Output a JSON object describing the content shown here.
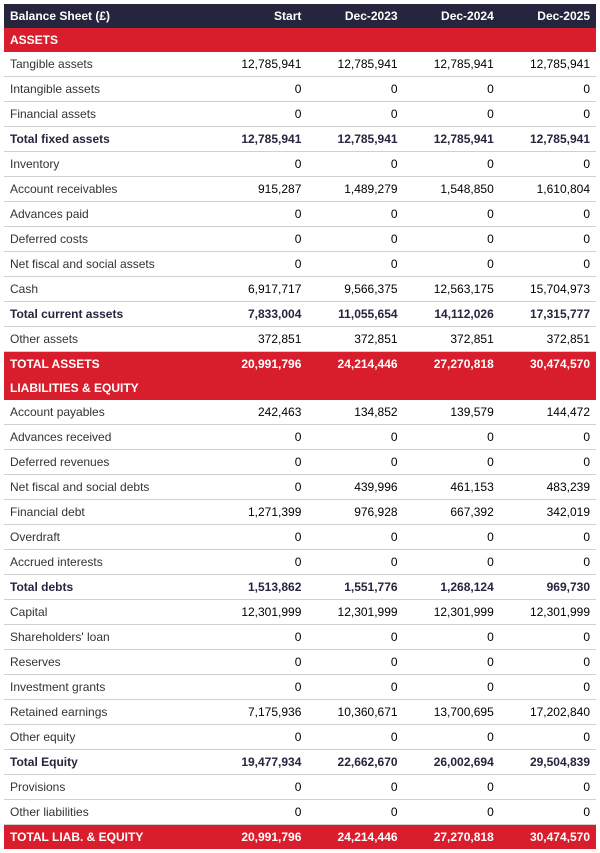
{
  "table": {
    "type": "table",
    "background_color": "#ffffff",
    "grid_color": "#d0d0d0",
    "font_size_pt": 12,
    "colors": {
      "header_bg": "#25253d",
      "header_fg": "#ffffff",
      "section_bg": "#d81e2c",
      "section_fg": "#ffffff",
      "subtotal_fg": "#25253d",
      "normal_fg": "#333333"
    },
    "columns": [
      "Balance Sheet (£)",
      "Start",
      "Dec-2023",
      "Dec-2024",
      "Dec-2025"
    ],
    "column_widths_pct": [
      35,
      16.25,
      16.25,
      16.25,
      16.25
    ],
    "rows": [
      {
        "kind": "section",
        "label": "ASSETS"
      },
      {
        "kind": "normal",
        "label": "Tangible assets",
        "values": [
          "12,785,941",
          "12,785,941",
          "12,785,941",
          "12,785,941"
        ]
      },
      {
        "kind": "normal",
        "label": "Intangible assets",
        "values": [
          "0",
          "0",
          "0",
          "0"
        ]
      },
      {
        "kind": "normal",
        "label": "Financial assets",
        "values": [
          "0",
          "0",
          "0",
          "0"
        ]
      },
      {
        "kind": "subtotal",
        "label": "Total fixed assets",
        "values": [
          "12,785,941",
          "12,785,941",
          "12,785,941",
          "12,785,941"
        ]
      },
      {
        "kind": "normal",
        "label": "Inventory",
        "values": [
          "0",
          "0",
          "0",
          "0"
        ]
      },
      {
        "kind": "normal",
        "label": "Account receivables",
        "values": [
          "915,287",
          "1,489,279",
          "1,548,850",
          "1,610,804"
        ]
      },
      {
        "kind": "normal",
        "label": "Advances paid",
        "values": [
          "0",
          "0",
          "0",
          "0"
        ]
      },
      {
        "kind": "normal",
        "label": "Deferred costs",
        "values": [
          "0",
          "0",
          "0",
          "0"
        ]
      },
      {
        "kind": "normal",
        "label": "Net fiscal and social assets",
        "values": [
          "0",
          "0",
          "0",
          "0"
        ]
      },
      {
        "kind": "normal",
        "label": "Cash",
        "values": [
          "6,917,717",
          "9,566,375",
          "12,563,175",
          "15,704,973"
        ]
      },
      {
        "kind": "subtotal",
        "label": "Total current assets",
        "values": [
          "7,833,004",
          "11,055,654",
          "14,112,026",
          "17,315,777"
        ]
      },
      {
        "kind": "normal",
        "label": "Other assets",
        "values": [
          "372,851",
          "372,851",
          "372,851",
          "372,851"
        ]
      },
      {
        "kind": "grand",
        "label": "TOTAL ASSETS",
        "values": [
          "20,991,796",
          "24,214,446",
          "27,270,818",
          "30,474,570"
        ]
      },
      {
        "kind": "section",
        "label": "LIABILITIES & EQUITY"
      },
      {
        "kind": "normal",
        "label": "Account payables",
        "values": [
          "242,463",
          "134,852",
          "139,579",
          "144,472"
        ]
      },
      {
        "kind": "normal",
        "label": "Advances received",
        "values": [
          "0",
          "0",
          "0",
          "0"
        ]
      },
      {
        "kind": "normal",
        "label": "Deferred revenues",
        "values": [
          "0",
          "0",
          "0",
          "0"
        ]
      },
      {
        "kind": "normal",
        "label": "Net fiscal and social debts",
        "values": [
          "0",
          "439,996",
          "461,153",
          "483,239"
        ]
      },
      {
        "kind": "normal",
        "label": "Financial debt",
        "values": [
          "1,271,399",
          "976,928",
          "667,392",
          "342,019"
        ]
      },
      {
        "kind": "normal",
        "label": "Overdraft",
        "values": [
          "0",
          "0",
          "0",
          "0"
        ]
      },
      {
        "kind": "normal",
        "label": "Accrued interests",
        "values": [
          "0",
          "0",
          "0",
          "0"
        ]
      },
      {
        "kind": "subtotal",
        "label": "Total debts",
        "values": [
          "1,513,862",
          "1,551,776",
          "1,268,124",
          "969,730"
        ]
      },
      {
        "kind": "normal",
        "label": "Capital",
        "values": [
          "12,301,999",
          "12,301,999",
          "12,301,999",
          "12,301,999"
        ]
      },
      {
        "kind": "normal",
        "label": "Shareholders' loan",
        "values": [
          "0",
          "0",
          "0",
          "0"
        ]
      },
      {
        "kind": "normal",
        "label": "Reserves",
        "values": [
          "0",
          "0",
          "0",
          "0"
        ]
      },
      {
        "kind": "normal",
        "label": "Investment grants",
        "values": [
          "0",
          "0",
          "0",
          "0"
        ]
      },
      {
        "kind": "normal",
        "label": "Retained earnings",
        "values": [
          "7,175,936",
          "10,360,671",
          "13,700,695",
          "17,202,840"
        ]
      },
      {
        "kind": "normal",
        "label": "Other equity",
        "values": [
          "0",
          "0",
          "0",
          "0"
        ]
      },
      {
        "kind": "subtotal",
        "label": "Total Equity",
        "values": [
          "19,477,934",
          "22,662,670",
          "26,002,694",
          "29,504,839"
        ]
      },
      {
        "kind": "normal",
        "label": "Provisions",
        "values": [
          "0",
          "0",
          "0",
          "0"
        ]
      },
      {
        "kind": "normal",
        "label": "Other liabilities",
        "values": [
          "0",
          "0",
          "0",
          "0"
        ]
      },
      {
        "kind": "grand",
        "label": "TOTAL LIAB. & EQUITY",
        "values": [
          "20,991,796",
          "24,214,446",
          "27,270,818",
          "30,474,570"
        ]
      }
    ]
  }
}
